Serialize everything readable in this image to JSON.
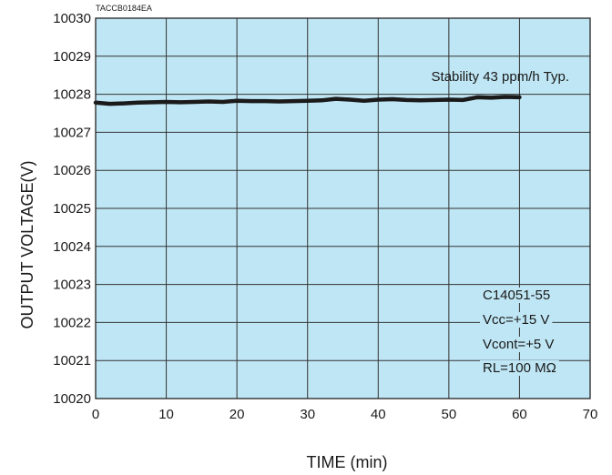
{
  "chart_data": {
    "type": "line",
    "figure_code": "TACCB0184EA",
    "xlabel": "TIME (min)",
    "ylabel": "OUTPUT VOLTAGE(V)",
    "xlim": [
      0,
      70
    ],
    "ylim": [
      10020,
      10030
    ],
    "x_ticks": [
      0,
      10,
      20,
      30,
      40,
      50,
      60,
      70
    ],
    "y_ticks": [
      10020,
      10021,
      10022,
      10023,
      10024,
      10025,
      10026,
      10027,
      10028,
      10029,
      10030
    ],
    "grid": true,
    "plot_background": "#bfe6f4",
    "line_color": "#1a1a1a",
    "stability_note": "Stability 43 ppm/h Typ.",
    "conditions": [
      "C14051-55",
      "Vcc=+15 V",
      "Vcont=+5 V",
      "RL=100 MΩ"
    ],
    "series": [
      {
        "x": [
          0,
          2,
          4,
          6,
          8,
          10,
          12,
          14,
          16,
          18,
          20,
          22,
          24,
          26,
          28,
          30,
          32,
          34,
          36,
          38,
          40,
          42,
          44,
          46,
          48,
          50,
          52,
          54,
          56,
          58,
          60
        ],
        "y": [
          10027.78,
          10027.75,
          10027.76,
          10027.78,
          10027.79,
          10027.8,
          10027.79,
          10027.8,
          10027.81,
          10027.8,
          10027.83,
          10027.82,
          10027.82,
          10027.81,
          10027.82,
          10027.83,
          10027.84,
          10027.88,
          10027.86,
          10027.83,
          10027.86,
          10027.87,
          10027.85,
          10027.84,
          10027.85,
          10027.86,
          10027.85,
          10027.92,
          10027.91,
          10027.93,
          10027.92
        ]
      }
    ]
  }
}
